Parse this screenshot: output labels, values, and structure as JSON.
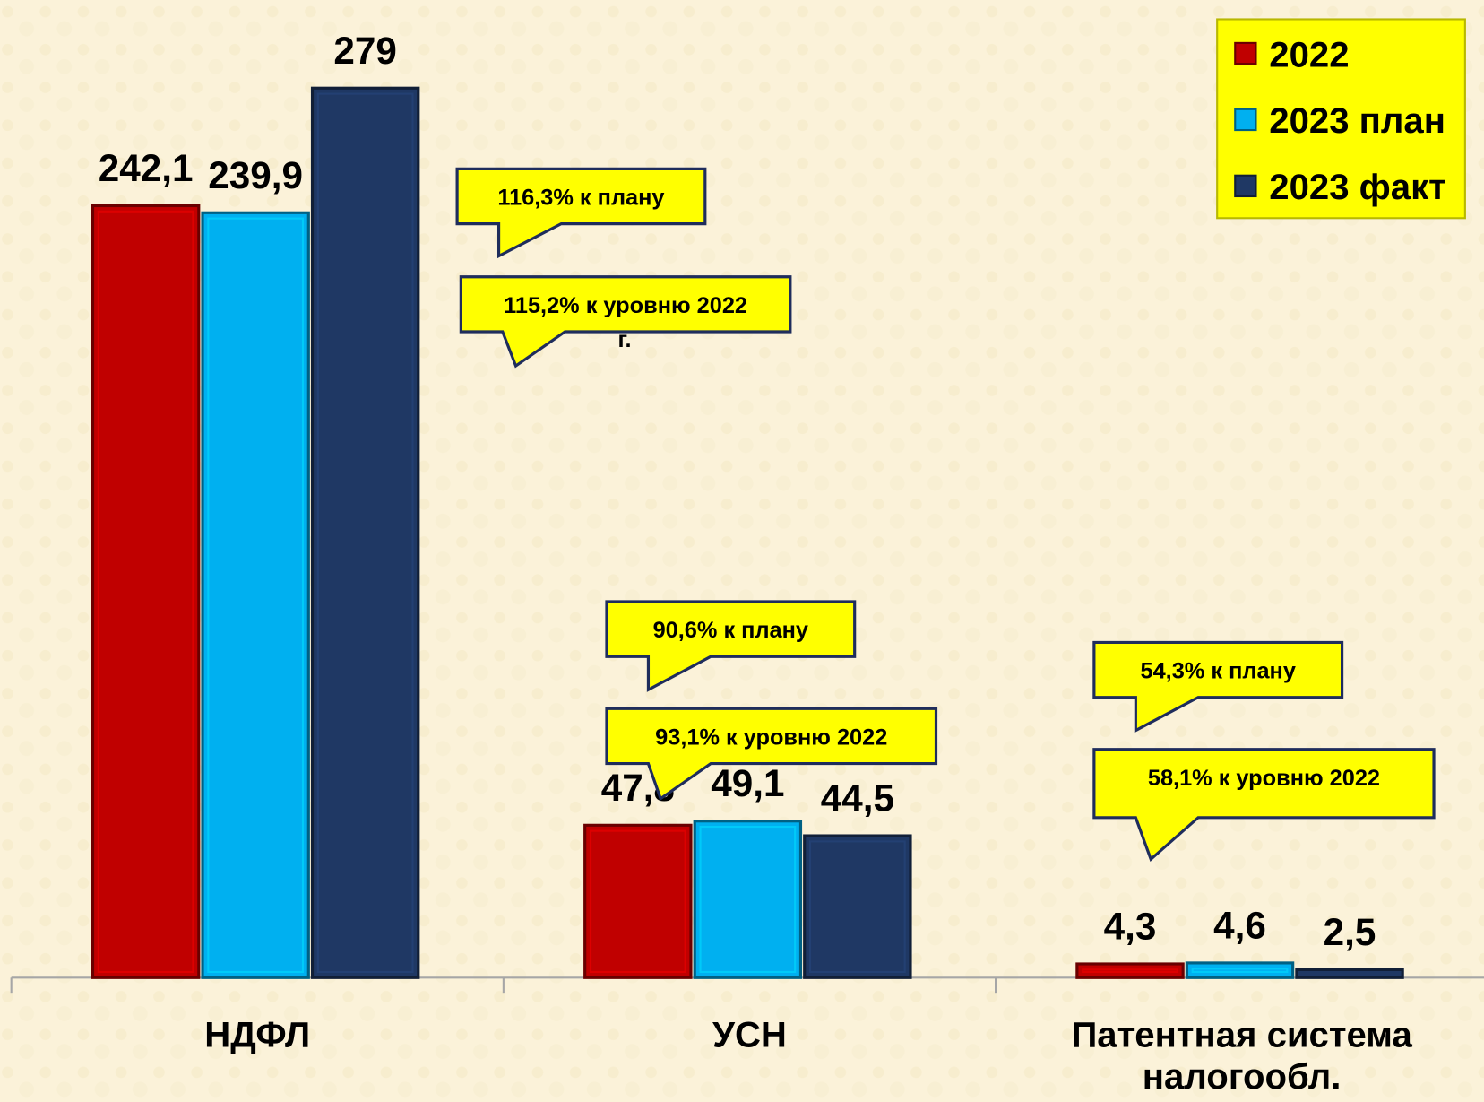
{
  "chart_data": {
    "type": "bar",
    "categories": [
      "НДФЛ",
      "УСН",
      "Патентная система налогообл."
    ],
    "series": [
      {
        "name": "2022",
        "color": "#c00000",
        "values": [
          242.1,
          47.8,
          4.3
        ],
        "value_labels": [
          "242,1",
          "47,8",
          "4,3"
        ]
      },
      {
        "name": "2023 план",
        "color": "#00b0f0",
        "values": [
          239.9,
          49.1,
          4.6
        ],
        "value_labels": [
          "239,9",
          "49,1",
          "4,6"
        ]
      },
      {
        "name": "2023 факт",
        "color": "#1f3864",
        "values": [
          279,
          44.5,
          2.5
        ],
        "value_labels": [
          "279",
          "44,5",
          "2,5"
        ]
      }
    ],
    "ylim": [
      0,
      300
    ],
    "legend": "top-right",
    "annotations": [
      "116,3% к плану",
      "115,2% к уровню 2022",
      "г.",
      "90,6% к плану",
      "93,1% к уровню 2022",
      "54,3% к плану",
      "58,1% к уровню 2022"
    ]
  }
}
